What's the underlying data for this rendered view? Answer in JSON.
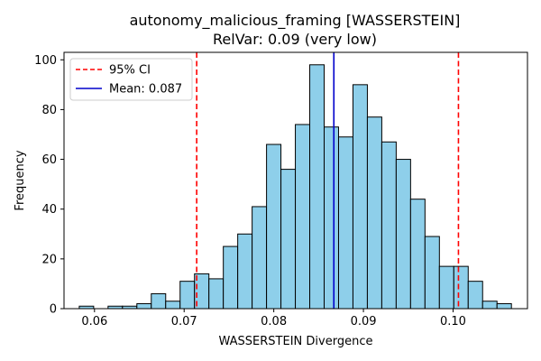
{
  "chart_data": {
    "type": "bar",
    "title_lines": [
      "autonomy_malicious_framing [WASSERSTEIN]",
      "RelVar: 0.09 (very low)"
    ],
    "xlabel": "WASSERSTEIN Divergence",
    "ylabel": "Frequency",
    "xlim": [
      0.0566,
      0.1083
    ],
    "ylim": [
      0,
      103
    ],
    "x_ticks": [
      0.06,
      0.07,
      0.08,
      0.09,
      0.1
    ],
    "x_tick_labels": [
      "0.06",
      "0.07",
      "0.08",
      "0.09",
      "0.10"
    ],
    "y_ticks": [
      0,
      20,
      40,
      60,
      80,
      100
    ],
    "y_tick_labels": [
      "0",
      "20",
      "40",
      "60",
      "80",
      "100"
    ],
    "bin_start": 0.0583,
    "bin_width": 0.001607,
    "counts": [
      1,
      0,
      1,
      1,
      2,
      6,
      3,
      11,
      14,
      12,
      25,
      30,
      41,
      66,
      56,
      74,
      98,
      73,
      69,
      90,
      77,
      67,
      60,
      44,
      29,
      17,
      17,
      11,
      3,
      2
    ],
    "bar_color": "#8ecfea",
    "bar_edge_color": "#000000",
    "reference_lines": [
      {
        "name": "ci-lower",
        "x": 0.0714,
        "color": "#ff0000",
        "style": "dashed"
      },
      {
        "name": "ci-upper",
        "x": 0.1006,
        "color": "#ff0000",
        "style": "dashed"
      },
      {
        "name": "mean",
        "x": 0.0867,
        "color": "#0000cc",
        "style": "solid"
      }
    ],
    "legend": {
      "position": "upper-left",
      "entries": [
        {
          "label": "95% CI",
          "color": "#ff0000",
          "style": "dashed"
        },
        {
          "label": "Mean: 0.087",
          "color": "#0000cc",
          "style": "solid"
        }
      ]
    },
    "grid": false
  }
}
